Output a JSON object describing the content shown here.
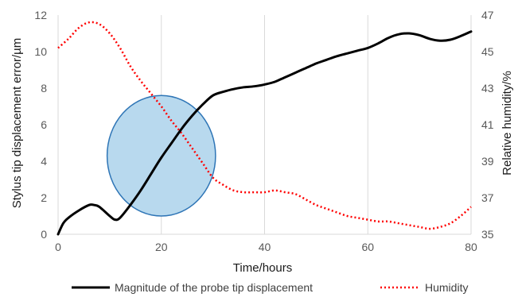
{
  "chart_data": {
    "type": "line",
    "xlabel": "Time/hours",
    "ylabel_left": "Stylus tip displacement error/µm",
    "ylabel_right": "Relative humidity/%",
    "xlim": [
      0,
      80
    ],
    "ylim_left": [
      0,
      12
    ],
    "ylim_right": [
      35,
      47
    ],
    "x_ticks": [
      "0",
      "20",
      "40",
      "60",
      "80"
    ],
    "y_left_ticks": [
      "0",
      "2",
      "4",
      "6",
      "8",
      "10",
      "12"
    ],
    "y_right_ticks": [
      "35",
      "37",
      "39",
      "41",
      "43",
      "45",
      "47"
    ],
    "grid": "vertical gridlines at x ticks",
    "legend_position": "bottom",
    "series": [
      {
        "name": "Magnitude of the probe tip displacement",
        "axis": "left",
        "color": "#000000",
        "style": "solid",
        "x": [
          0,
          1,
          2,
          4,
          6,
          7,
          8,
          10,
          11,
          12,
          14,
          16,
          18,
          20,
          22,
          24,
          26,
          28,
          30,
          32,
          34,
          36,
          38,
          40,
          42,
          44,
          46,
          48,
          50,
          52,
          54,
          56,
          58,
          60,
          62,
          64,
          66,
          68,
          70,
          72,
          74,
          76,
          78,
          80
        ],
        "y": [
          0.0,
          0.6,
          0.9,
          1.3,
          1.6,
          1.6,
          1.5,
          1.0,
          0.8,
          0.9,
          1.6,
          2.4,
          3.3,
          4.2,
          5.0,
          5.8,
          6.5,
          7.1,
          7.6,
          7.8,
          7.95,
          8.05,
          8.1,
          8.2,
          8.35,
          8.6,
          8.85,
          9.1,
          9.35,
          9.55,
          9.75,
          9.9,
          10.05,
          10.2,
          10.45,
          10.75,
          10.95,
          11.0,
          10.9,
          10.7,
          10.6,
          10.65,
          10.85,
          11.1
        ]
      },
      {
        "name": "Humidity",
        "axis": "right",
        "color": "#ff0000",
        "style": "dotted",
        "x": [
          0,
          2,
          4,
          6,
          8,
          10,
          12,
          14,
          16,
          18,
          20,
          22,
          24,
          26,
          28,
          30,
          32,
          34,
          36,
          38,
          40,
          42,
          44,
          46,
          48,
          50,
          52,
          54,
          56,
          58,
          60,
          62,
          64,
          66,
          68,
          70,
          72,
          74,
          76,
          78,
          80
        ],
        "y": [
          45.2,
          45.7,
          46.3,
          46.6,
          46.5,
          46.0,
          45.2,
          44.2,
          43.4,
          42.7,
          42.0,
          41.2,
          40.5,
          39.7,
          38.9,
          38.1,
          37.7,
          37.4,
          37.3,
          37.3,
          37.3,
          37.4,
          37.3,
          37.2,
          36.9,
          36.6,
          36.4,
          36.2,
          36.0,
          35.9,
          35.8,
          35.7,
          35.7,
          35.6,
          35.5,
          35.4,
          35.3,
          35.4,
          35.6,
          36.0,
          36.5
        ]
      }
    ],
    "annotation": {
      "shape": "ellipse",
      "fill": "#b8d9ee",
      "stroke": "#2e75b6",
      "center_x": 20,
      "center_y": 4.3,
      "radius_x": 10.5,
      "radius_y": 3.3
    }
  }
}
